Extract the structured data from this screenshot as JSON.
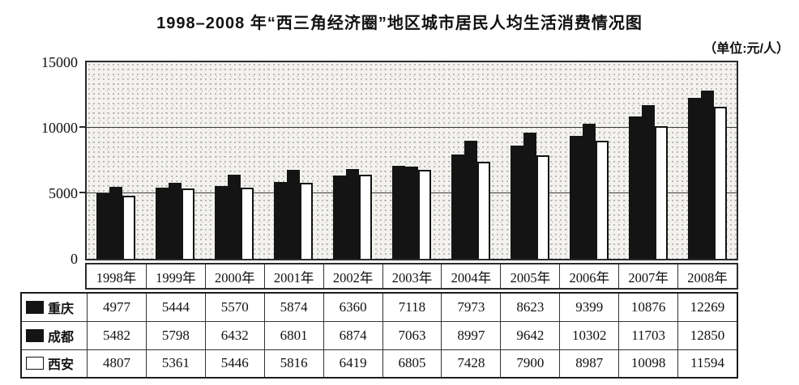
{
  "title": "1998–2008 年“西三角经济圈”地区城市居民人均生活消费情况图",
  "unit_label": "（单位:元/人）",
  "chart_data": {
    "type": "bar",
    "title": "1998–2008 年“西三角经济圈”地区城市居民人均生活消费情况图",
    "unit": "元/人",
    "categories": [
      "1998年",
      "1999年",
      "2000年",
      "2001年",
      "2002年",
      "2003年",
      "2004年",
      "2005年",
      "2006年",
      "2007年",
      "2008年"
    ],
    "series": [
      {
        "name": "重庆",
        "color": "#141414",
        "values": [
          4977,
          5444,
          5570,
          5874,
          6360,
          7118,
          7973,
          8623,
          9399,
          10876,
          12269
        ]
      },
      {
        "name": "成都",
        "color": "#141414",
        "values": [
          5482,
          5798,
          6432,
          6801,
          6874,
          7063,
          8997,
          9642,
          10302,
          11703,
          12850
        ]
      },
      {
        "name": "西安",
        "color": "#ffffff",
        "values": [
          4807,
          5361,
          5446,
          5816,
          6419,
          6805,
          7428,
          7900,
          8987,
          10098,
          11594
        ]
      }
    ],
    "ylim": [
      0,
      15000
    ],
    "yticks": [
      0,
      5000,
      10000,
      15000
    ],
    "gridlines": [
      5000,
      10000
    ],
    "grid": true,
    "legend_position": "table-left-column",
    "xlabel": "",
    "ylabel": ""
  }
}
